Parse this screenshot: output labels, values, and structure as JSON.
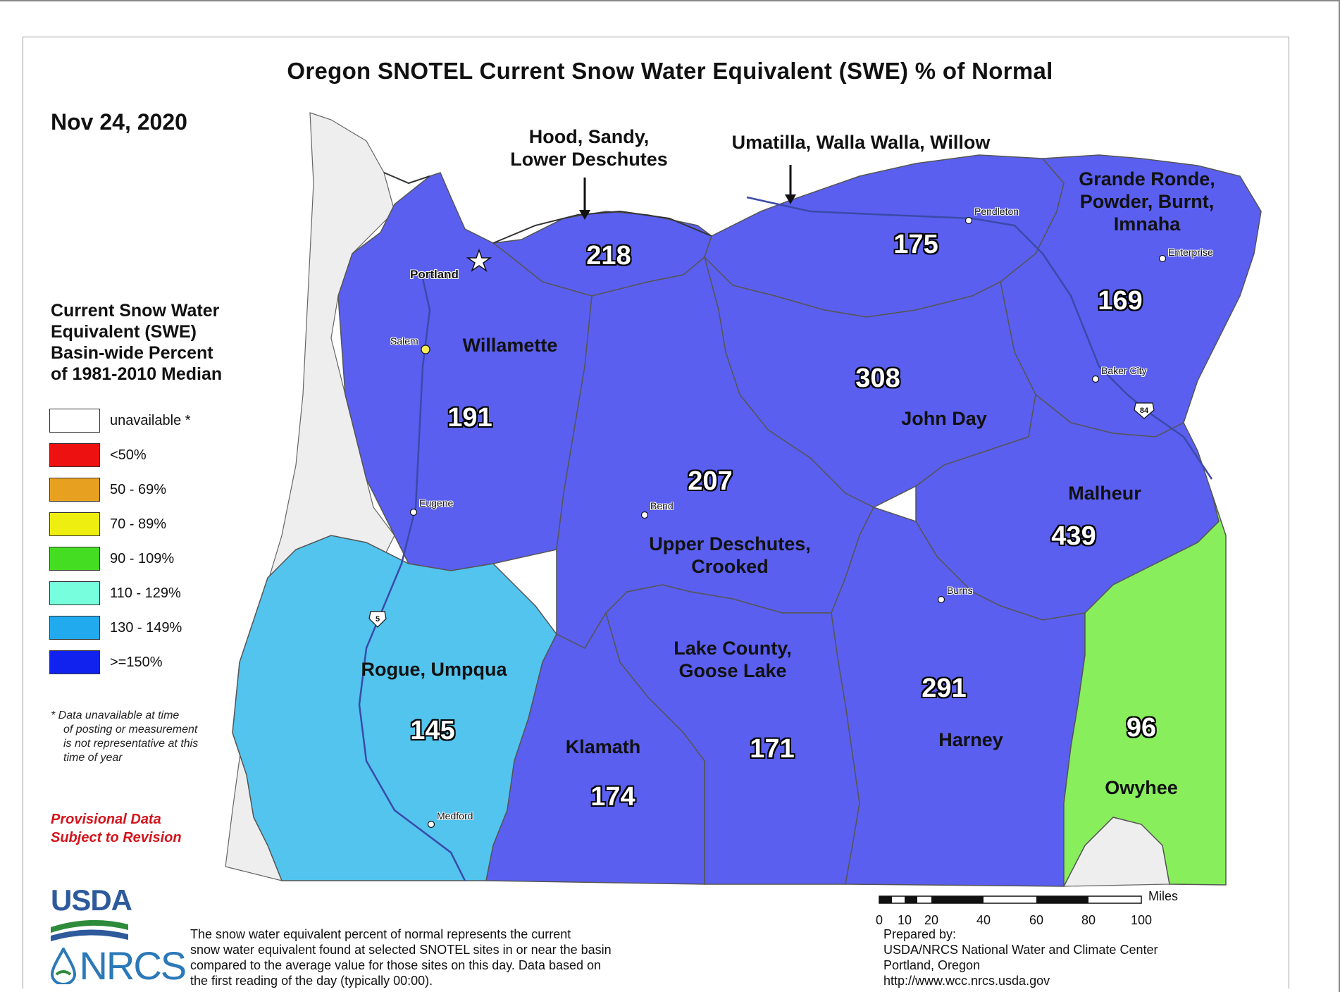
{
  "title": "Oregon SNOTEL Current Snow Water Equivalent (SWE) % of Normal",
  "date": "Nov 24, 2020",
  "legend": {
    "title_lines": [
      "Current Snow Water",
      "Equivalent (SWE)",
      "Basin-wide Percent",
      "of 1981-2010 Median"
    ],
    "items": [
      {
        "label": "unavailable *",
        "color": "#ffffff"
      },
      {
        "label": "<50%",
        "color": "#ee1111"
      },
      {
        "label": "50 - 69%",
        "color": "#e8a020"
      },
      {
        "label": "70 - 89%",
        "color": "#eeee10"
      },
      {
        "label": "90 - 109%",
        "color": "#44dd22"
      },
      {
        "label": "110 - 129%",
        "color": "#77ffdd"
      },
      {
        "label": "130 - 149%",
        "color": "#22aaee"
      },
      {
        "label": ">=150%",
        "color": "#1122ee"
      }
    ]
  },
  "footnote_lines": [
    "*  Data unavailable at time",
    "of posting or measurement",
    "is not representative at this",
    "time of year"
  ],
  "provisional_lines": [
    "Provisional Data",
    "Subject to Revision"
  ],
  "basins": [
    {
      "id": "willamette",
      "name_lines": [
        "Willamette"
      ],
      "value": "191",
      "color": "#5a5ff0"
    },
    {
      "id": "hood",
      "name_lines": [
        "Hood, Sandy,",
        "Lower Deschutes"
      ],
      "value": "218",
      "color": "#5a5ff0"
    },
    {
      "id": "umatilla",
      "name_lines": [
        "Umatilla, Walla Walla, Willow"
      ],
      "value": "175",
      "color": "#5a5ff0"
    },
    {
      "id": "grande-ronde",
      "name_lines": [
        "Grande Ronde,",
        "Powder, Burnt,",
        "Imnaha"
      ],
      "value": "169",
      "color": "#5a5ff0"
    },
    {
      "id": "john-day",
      "name_lines": [
        "John Day"
      ],
      "value": "308",
      "color": "#5a5ff0"
    },
    {
      "id": "upper-deschutes",
      "name_lines": [
        "Upper Deschutes,",
        "Crooked"
      ],
      "value": "207",
      "color": "#5a5ff0"
    },
    {
      "id": "malheur",
      "name_lines": [
        "Malheur"
      ],
      "value": "439",
      "color": "#5a5ff0"
    },
    {
      "id": "rogue",
      "name_lines": [
        "Rogue, Umpqua"
      ],
      "value": "145",
      "color": "#52c4ee"
    },
    {
      "id": "lake-county",
      "name_lines": [
        "Lake County,",
        "Goose Lake"
      ],
      "value": "171",
      "color": "#5a5ff0"
    },
    {
      "id": "harney",
      "name_lines": [
        "Harney"
      ],
      "value": "291",
      "color": "#5a5ff0"
    },
    {
      "id": "klamath",
      "name_lines": [
        "Klamath"
      ],
      "value": "174",
      "color": "#5a5ff0"
    },
    {
      "id": "owyhee",
      "name_lines": [
        "Owyhee"
      ],
      "value": "96",
      "color": "#88ee5c"
    }
  ],
  "cities": [
    {
      "name": "Portland",
      "bold": true
    },
    {
      "name": "Salem"
    },
    {
      "name": "Eugene"
    },
    {
      "name": "Bend"
    },
    {
      "name": "Medford"
    },
    {
      "name": "Pendleton"
    },
    {
      "name": "Enterprise"
    },
    {
      "name": "Baker City"
    },
    {
      "name": "Burns"
    }
  ],
  "highways": [
    "5",
    "84"
  ],
  "scale": {
    "unit": "Miles",
    "ticks": [
      "0",
      "10",
      "20",
      "40",
      "60",
      "80",
      "100"
    ]
  },
  "description_lines": [
    "The snow water equivalent percent of normal represents the current",
    "snow water equivalent found at selected SNOTEL sites in or near the basin",
    "compared to the average value for those sites on this day. Data based on",
    "the first reading of the day (typically 00:00)."
  ],
  "prepared_lines": [
    "Prepared by:",
    "USDA/NRCS National Water and Climate Center",
    "Portland, Oregon",
    "http://www.wcc.nrcs.usda.gov"
  ],
  "logos": {
    "usda": "USDA",
    "nrcs": "NRCS"
  }
}
